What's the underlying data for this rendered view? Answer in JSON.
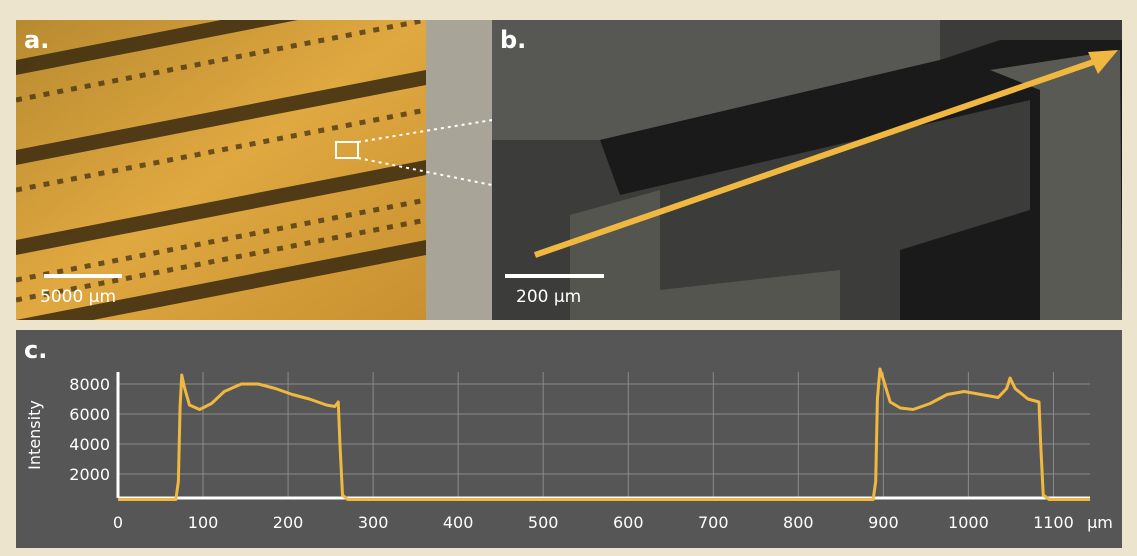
{
  "panels": {
    "a": {
      "label": "a.",
      "scale_bar": "5000 µm"
    },
    "b": {
      "label": "b.",
      "scale_bar": "200 µm"
    },
    "c": {
      "label": "c."
    }
  },
  "chart_data": {
    "type": "line",
    "ylabel": "Intensity",
    "xlabel": "µm",
    "color": "#f0b840",
    "x": [
      0,
      68,
      71,
      73,
      75,
      78,
      84,
      96,
      110,
      125,
      145,
      165,
      185,
      205,
      225,
      245,
      255,
      259,
      261,
      264,
      270,
      888,
      891,
      893,
      896,
      900,
      908,
      920,
      935,
      955,
      975,
      995,
      1015,
      1035,
      1045,
      1049,
      1055,
      1070,
      1083,
      1085,
      1088,
      1095,
      1143
    ],
    "values": [
      300,
      300,
      1500,
      6500,
      8600,
      7800,
      6600,
      6300,
      6700,
      7500,
      8000,
      8000,
      7700,
      7300,
      7000,
      6600,
      6500,
      6800,
      4000,
      600,
      300,
      300,
      1500,
      7000,
      9000,
      8300,
      6800,
      6400,
      6300,
      6700,
      7300,
      7500,
      7300,
      7100,
      7700,
      8400,
      7700,
      7000,
      6800,
      4000,
      600,
      300,
      300
    ],
    "xlim": [
      0,
      1143
    ],
    "ylim": [
      400,
      8800
    ],
    "xticks": [
      0,
      100,
      200,
      300,
      400,
      500,
      600,
      700,
      800,
      900,
      1000,
      1100
    ],
    "yticks": [
      2000,
      4000,
      6000,
      8000
    ],
    "grid": true
  }
}
